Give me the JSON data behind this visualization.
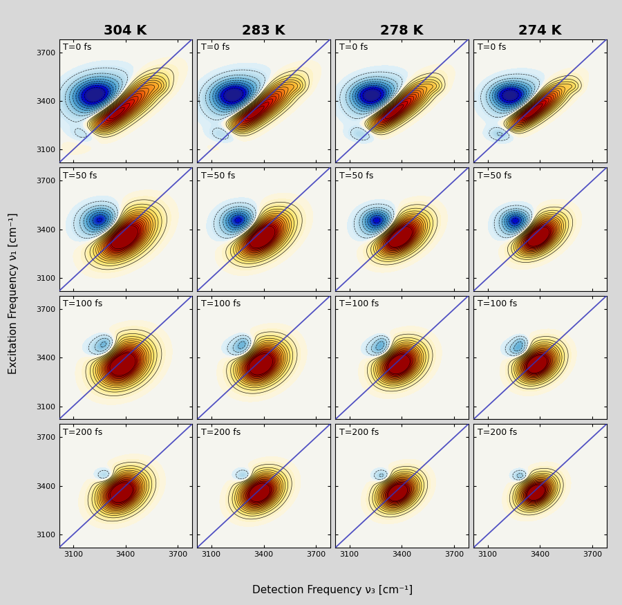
{
  "temperatures": [
    "304 K",
    "283 K",
    "278 K",
    "274 K"
  ],
  "times": [
    "T=0 fs",
    "T=50 fs",
    "T=100 fs",
    "T=200 fs"
  ],
  "xlabel": "Detection Frequency ν₃ [cm⁻¹]",
  "ylabel": "Excitation Frequency ν₁ [cm⁻¹]",
  "xlim": [
    3020,
    3780
  ],
  "ylim": [
    3020,
    3780
  ],
  "xticks": [
    3100,
    3400,
    3700
  ],
  "yticks": [
    3100,
    3400,
    3700
  ],
  "diagonal_color": "#3333bb",
  "bg_color": "#d8d8d8",
  "panel_bg": "#ffffff",
  "n_contours": 18,
  "title_fontsize": 14,
  "label_fontsize": 11,
  "tick_fontsize": 8,
  "annotation_fontsize": 9
}
